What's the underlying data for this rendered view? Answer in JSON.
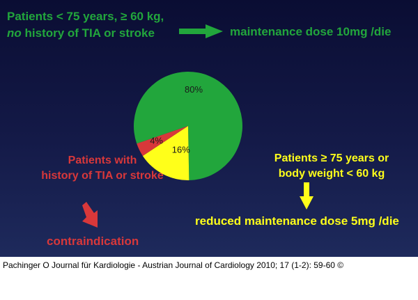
{
  "header": {
    "line1": "Patients < 75 years, ≥ 60 kg,",
    "line2_italic": "no",
    "line2_rest": " history of TIA or stroke"
  },
  "maintenance_label": "maintenance dose 10mg /die",
  "tia_label": {
    "line1": "Patients with",
    "line2": "history of TIA or stroke"
  },
  "contraindication_label": "contraindication",
  "elderly_label": {
    "line1": "Patients ≥ 75 years or",
    "line2": "body weight < 60 kg"
  },
  "reduced_label": "reduced maintenance dose 5mg /die",
  "footer": "Pachinger O Journal für Kardiologie - Austrian Journal of Cardiology 2010; 17 (1-2): 59-60 ©",
  "colors": {
    "green": "#22a63c",
    "red": "#d8383a",
    "yellow": "#ffff1a",
    "background": "#0a0d33"
  },
  "chart_data": {
    "type": "pie",
    "slices": [
      {
        "label": "80%",
        "value": 80,
        "color": "#22a63c"
      },
      {
        "label": "16%",
        "value": 16,
        "color": "#ffff1a"
      },
      {
        "label": "4%",
        "value": 4,
        "color": "#d8383a"
      }
    ]
  }
}
